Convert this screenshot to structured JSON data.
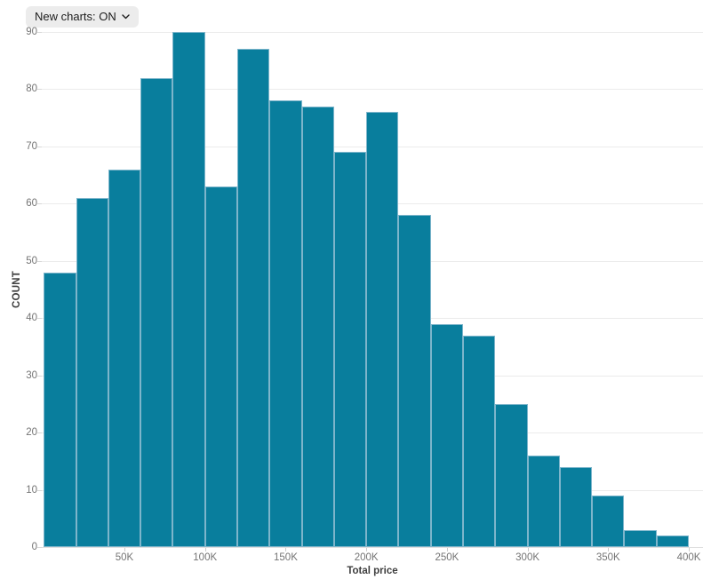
{
  "controls": {
    "new_charts_label": "New charts: ON"
  },
  "chart_data": {
    "type": "bar",
    "subtype": "histogram",
    "title": "",
    "xlabel": "Total price",
    "ylabel": "COUNT",
    "legend": "none",
    "grid": true,
    "bar_color": "#097e9d",
    "bar_stroke_color": "#7db5cb",
    "bin_start_k": 0,
    "bin_width_k": 20,
    "categories": [
      "0-20K",
      "20-40K",
      "40-60K",
      "60-80K",
      "80-100K",
      "100-120K",
      "120-140K",
      "140-160K",
      "160-180K",
      "180-200K",
      "200-220K",
      "220-240K",
      "240-260K",
      "260-280K",
      "280-300K",
      "300-320K",
      "320-340K",
      "340-360K",
      "360-380K",
      "380-400K"
    ],
    "values": [
      48,
      61,
      66,
      82,
      90,
      63,
      87,
      78,
      77,
      69,
      76,
      58,
      39,
      37,
      25,
      16,
      14,
      9,
      3,
      2
    ],
    "x_ticks": [
      {
        "k": 50,
        "label": "50K"
      },
      {
        "k": 100,
        "label": "100K"
      },
      {
        "k": 150,
        "label": "150K"
      },
      {
        "k": 200,
        "label": "200K"
      },
      {
        "k": 250,
        "label": "250K"
      },
      {
        "k": 300,
        "label": "300K"
      },
      {
        "k": 350,
        "label": "350K"
      },
      {
        "k": 400,
        "label": "400K"
      }
    ],
    "y_ticks": [
      0,
      10,
      20,
      30,
      40,
      50,
      60,
      70,
      80,
      90
    ],
    "ylim": [
      0,
      90
    ],
    "xlim_k": [
      -1,
      409
    ]
  }
}
